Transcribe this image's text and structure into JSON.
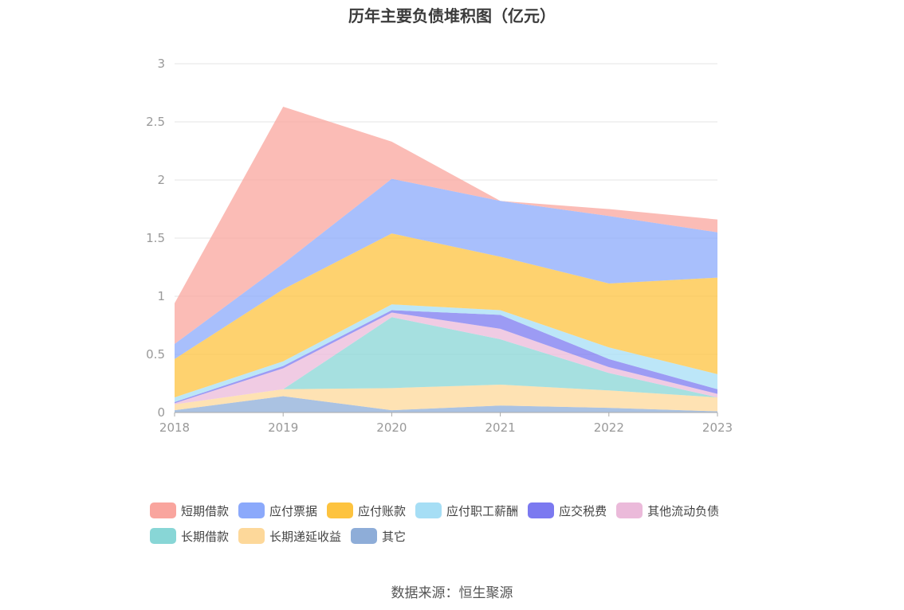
{
  "chart_data": {
    "type": "area",
    "stacked": true,
    "title": "历年主要负债堆积图（亿元）",
    "x": [
      "2018",
      "2019",
      "2020",
      "2021",
      "2022",
      "2023"
    ],
    "ylim": [
      0,
      3
    ],
    "yticks": [
      "0",
      "0.5",
      "1",
      "1.5",
      "2",
      "2.5",
      "3"
    ],
    "grid": true,
    "legend_position": "bottom",
    "series": [
      {
        "name": "其它",
        "color": "#8eadd8",
        "values": [
          0.02,
          0.14,
          0.02,
          0.06,
          0.04,
          0.01
        ]
      },
      {
        "name": "长期递延收益",
        "color": "#fdd89a",
        "values": [
          0.05,
          0.06,
          0.19,
          0.18,
          0.15,
          0.12
        ]
      },
      {
        "name": "长期借款",
        "color": "#88d6d6",
        "values": [
          0.0,
          0.0,
          0.61,
          0.39,
          0.15,
          0.0
        ]
      },
      {
        "name": "其他流动负债",
        "color": "#ebbada",
        "values": [
          0.01,
          0.18,
          0.04,
          0.09,
          0.05,
          0.03
        ]
      },
      {
        "name": "应交税费",
        "color": "#7b79f0",
        "values": [
          0.01,
          0.02,
          0.02,
          0.12,
          0.07,
          0.04
        ]
      },
      {
        "name": "应付职工薪酬",
        "color": "#a6def5",
        "values": [
          0.04,
          0.04,
          0.05,
          0.04,
          0.1,
          0.13
        ]
      },
      {
        "name": "应付账款",
        "color": "#fdc33f",
        "values": [
          0.33,
          0.62,
          0.61,
          0.46,
          0.55,
          0.83
        ]
      },
      {
        "name": "应付票据",
        "color": "#8ba9fb",
        "values": [
          0.13,
          0.22,
          0.47,
          0.48,
          0.58,
          0.39
        ]
      },
      {
        "name": "短期借款",
        "color": "#f9a59e",
        "values": [
          0.35,
          1.35,
          0.32,
          0.0,
          0.06,
          0.11
        ]
      }
    ]
  },
  "legend_order": [
    "短期借款",
    "应付票据",
    "应付账款",
    "应付职工薪酬",
    "应交税费",
    "其他流动负债",
    "长期借款",
    "长期递延收益",
    "其它"
  ],
  "source": "数据来源：恒生聚源"
}
